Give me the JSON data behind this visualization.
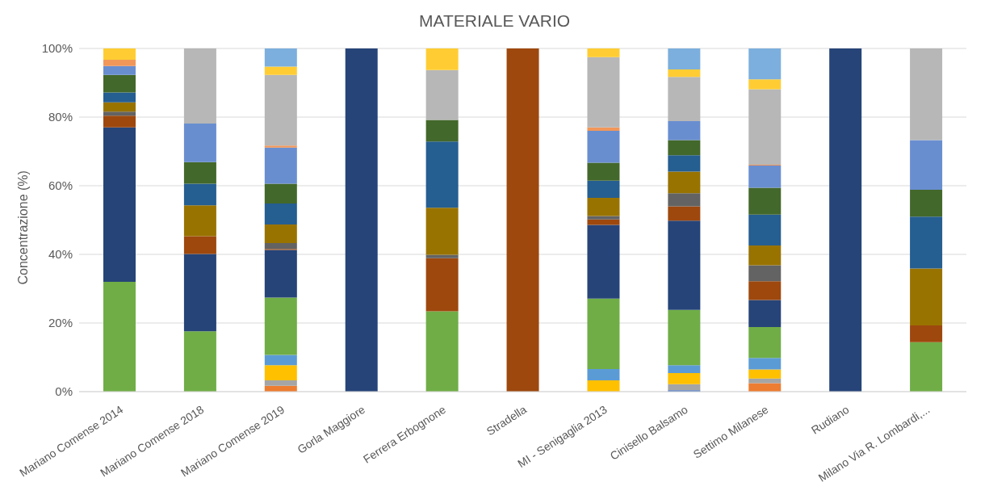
{
  "chart_data": {
    "type": "bar",
    "title": "MATERIALE VARIO",
    "ylabel": "Concentrazione (%)",
    "stacked": true,
    "grid": "y",
    "legend": false,
    "categories": [
      "Mariano Comense 2014",
      "Mariano Comense 2018",
      "Mariano Comense 2019",
      "Gorla Maggiore",
      "Ferrera Erbognone",
      "Stradella",
      "MI - Senigaglia 2013",
      "Cinisello Balsamo",
      "Settimo Milanese",
      "Rudiano",
      "Milano Via R. Lombardi,..."
    ],
    "ylim": [
      0,
      100
    ],
    "yticks": [
      {
        "value": 0,
        "label": "0%"
      },
      {
        "value": 20,
        "label": "20%"
      },
      {
        "value": 40,
        "label": "40%"
      },
      {
        "value": 60,
        "label": "60%"
      },
      {
        "value": 80,
        "label": "80%"
      },
      {
        "value": 100,
        "label": "100%"
      }
    ],
    "series": [
      {
        "color": "#4472c4",
        "values": [
          null,
          null,
          null,
          null,
          null,
          null,
          null,
          0.4,
          null,
          null,
          null
        ]
      },
      {
        "color": "#ed7d31",
        "values": [
          null,
          null,
          1.7,
          null,
          null,
          null,
          null,
          null,
          2.5,
          null,
          null
        ]
      },
      {
        "color": "#a5a5a5",
        "values": [
          null,
          null,
          1.6,
          null,
          null,
          null,
          null,
          1.8,
          1.3,
          null,
          null
        ]
      },
      {
        "color": "#ffc000",
        "values": [
          null,
          null,
          4.4,
          null,
          null,
          null,
          3.3,
          3.2,
          2.7,
          null,
          null
        ]
      },
      {
        "color": "#5b9bd5",
        "values": [
          null,
          null,
          3.0,
          null,
          null,
          null,
          3.3,
          2.3,
          3.3,
          null,
          null
        ]
      },
      {
        "color": "#70ad47",
        "values": [
          32,
          17.6,
          16.7,
          null,
          23.4,
          null,
          20.5,
          16.1,
          9.0,
          null,
          14.4
        ]
      },
      {
        "color": "#264478",
        "values": [
          45,
          22.5,
          13.9,
          100,
          null,
          null,
          21.5,
          26.0,
          7.9,
          100,
          null
        ]
      },
      {
        "color": "#9e480e",
        "values": [
          3.4,
          5.2,
          0.3,
          null,
          15.5,
          100,
          1.6,
          4.2,
          5.5,
          null,
          4.9
        ]
      },
      {
        "color": "#636363",
        "values": [
          1.2,
          null,
          1.7,
          null,
          1.0,
          null,
          1.0,
          3.8,
          4.6,
          null,
          null
        ]
      },
      {
        "color": "#997300",
        "values": [
          2.7,
          9.0,
          5.4,
          null,
          13.7,
          null,
          5.3,
          6.3,
          5.8,
          null,
          16.6
        ]
      },
      {
        "color": "#255e91",
        "values": [
          2.9,
          6.3,
          6.1,
          null,
          19.3,
          null,
          5.0,
          4.8,
          9.0,
          null,
          15.1
        ]
      },
      {
        "color": "#43682b",
        "values": [
          5.1,
          6.3,
          5.8,
          null,
          6.3,
          null,
          5.2,
          4.4,
          7.8,
          null,
          7.8
        ]
      },
      {
        "color": "#698ed0",
        "values": [
          2.6,
          11.2,
          10.5,
          null,
          null,
          null,
          9.3,
          5.5,
          6.5,
          null,
          14.5
        ]
      },
      {
        "color": "#f1975a",
        "values": [
          1.8,
          null,
          0.6,
          null,
          null,
          null,
          1.0,
          null,
          0.2,
          null,
          null
        ]
      },
      {
        "color": "#b7b7b7",
        "values": [
          null,
          21.9,
          20.6,
          null,
          14.5,
          null,
          20.5,
          12.9,
          22.0,
          null,
          26.7
        ]
      },
      {
        "color": "#ffcd33",
        "values": [
          3.3,
          null,
          2.4,
          null,
          6.3,
          null,
          2.5,
          2.2,
          2.9,
          null,
          null
        ]
      },
      {
        "color": "#7cafdd",
        "values": [
          null,
          null,
          5.3,
          null,
          null,
          null,
          null,
          6.1,
          9.0,
          null,
          null
        ]
      }
    ]
  }
}
